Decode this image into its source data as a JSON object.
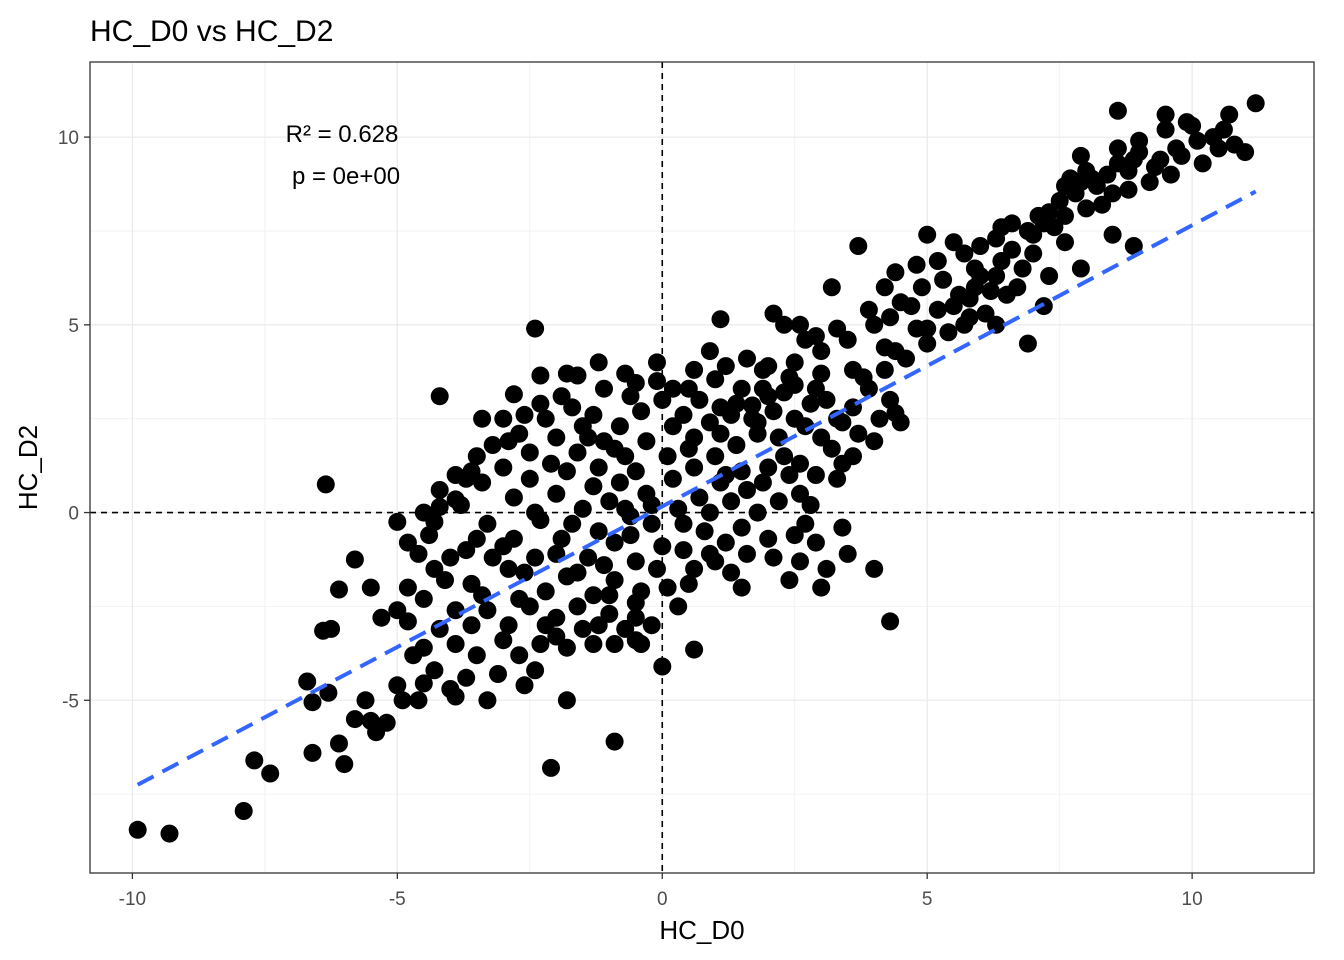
{
  "chart_data": {
    "type": "scatter",
    "title": "HC_D0 vs HC_D2",
    "xlabel": "HC_D0",
    "ylabel": "HC_D2",
    "xlim": [
      -10.8,
      12.3
    ],
    "ylim": [
      -9.6,
      12.0
    ],
    "x_ticks": [
      -10,
      -5,
      0,
      5,
      10
    ],
    "y_ticks": [
      -5,
      0,
      5,
      10
    ],
    "x_tick_labels": [
      "-10",
      "-5",
      "0",
      "5",
      "10"
    ],
    "y_tick_labels": [
      "-5",
      "0",
      "5",
      "10"
    ],
    "grid": true,
    "reference_lines": {
      "x": 0,
      "y": 0,
      "style": "dashed",
      "color": "#000000"
    },
    "annotations": {
      "r2": "R² = 0.628",
      "p": "p = 0e+00"
    },
    "fit_line": {
      "x": [
        -9.9,
        11.2
      ],
      "y": [
        -7.25,
        8.55
      ],
      "color": "#3366FF",
      "style": "dashed"
    },
    "point_color": "#000000",
    "points": [
      [
        -9.9,
        -8.45
      ],
      [
        -9.3,
        -8.55
      ],
      [
        -7.9,
        -7.95
      ],
      [
        -7.4,
        -6.95
      ],
      [
        -7.7,
        -6.6
      ],
      [
        -6.6,
        -6.4
      ],
      [
        -6.0,
        -6.7
      ],
      [
        -6.1,
        -6.15
      ],
      [
        -5.8,
        -5.5
      ],
      [
        -5.5,
        -5.55
      ],
      [
        -5.4,
        -5.85
      ],
      [
        -5.2,
        -5.6
      ],
      [
        -4.9,
        -5.0
      ],
      [
        -4.6,
        -5.0
      ],
      [
        -4.5,
        -4.55
      ],
      [
        -4.3,
        -4.2
      ],
      [
        -4.0,
        -4.7
      ],
      [
        -3.9,
        -4.9
      ],
      [
        -3.3,
        -5.0
      ],
      [
        -3.7,
        -4.4
      ],
      [
        -6.7,
        -4.5
      ],
      [
        -6.6,
        -5.05
      ],
      [
        -6.3,
        -4.8
      ],
      [
        -5.6,
        -5.0
      ],
      [
        -5.0,
        -4.6
      ],
      [
        -4.7,
        -3.8
      ],
      [
        -4.5,
        -3.6
      ],
      [
        -4.8,
        -2.9
      ],
      [
        -5.3,
        -2.8
      ],
      [
        -5.0,
        -2.6
      ],
      [
        -5.5,
        -2.0
      ],
      [
        -5.8,
        -1.25
      ],
      [
        -6.1,
        -2.05
      ],
      [
        -6.4,
        -3.15
      ],
      [
        -6.25,
        -3.1
      ],
      [
        -6.35,
        0.75
      ],
      [
        -5.0,
        -0.25
      ],
      [
        -4.8,
        -0.8
      ],
      [
        -4.3,
        -0.25
      ],
      [
        -4.5,
        0.0
      ],
      [
        -4.2,
        0.15
      ],
      [
        -3.9,
        0.35
      ],
      [
        -3.7,
        0.9
      ],
      [
        -3.6,
        1.1
      ],
      [
        -3.4,
        2.5
      ],
      [
        -4.2,
        3.1
      ],
      [
        -3.0,
        2.5
      ],
      [
        -2.8,
        3.15
      ],
      [
        -2.4,
        4.9
      ],
      [
        -2.3,
        3.65
      ],
      [
        -1.8,
        3.7
      ],
      [
        -1.6,
        3.65
      ],
      [
        -1.2,
        4.0
      ],
      [
        -0.7,
        3.7
      ],
      [
        -0.5,
        3.45
      ],
      [
        -0.1,
        4.0
      ],
      [
        0.2,
        3.3
      ],
      [
        0.5,
        3.3
      ],
      [
        1.0,
        3.55
      ],
      [
        1.1,
        2.8
      ],
      [
        1.4,
        2.9
      ],
      [
        1.7,
        2.85
      ],
      [
        2.0,
        3.1
      ],
      [
        2.3,
        3.2
      ],
      [
        1.8,
        2.4
      ],
      [
        2.2,
        2.0
      ],
      [
        2.5,
        2.5
      ],
      [
        2.8,
        2.9
      ],
      [
        3.1,
        3.0
      ],
      [
        3.4,
        2.4
      ],
      [
        3.7,
        2.1
      ],
      [
        3.9,
        3.3
      ],
      [
        4.3,
        3.0
      ],
      [
        4.4,
        2.65
      ],
      [
        4.0,
        1.9
      ],
      [
        3.6,
        1.5
      ],
      [
        3.2,
        1.7
      ],
      [
        3.4,
        1.3
      ],
      [
        2.9,
        1.0
      ],
      [
        2.6,
        0.5
      ],
      [
        2.8,
        0.2
      ],
      [
        2.7,
        -0.3
      ],
      [
        2.5,
        -0.6
      ],
      [
        2.9,
        -0.8
      ],
      [
        3.4,
        -0.4
      ],
      [
        1.1,
        5.15
      ],
      [
        2.1,
        5.3
      ],
      [
        2.6,
        5.0
      ],
      [
        3.2,
        6.0
      ],
      [
        3.7,
        7.1
      ],
      [
        4.2,
        6.0
      ],
      [
        4.8,
        6.6
      ],
      [
        5.0,
        7.4
      ],
      [
        5.3,
        6.2
      ],
      [
        5.5,
        7.2
      ],
      [
        5.9,
        6.5
      ],
      [
        6.0,
        7.1
      ],
      [
        6.3,
        7.3
      ],
      [
        6.6,
        7.7
      ],
      [
        6.9,
        7.5
      ],
      [
        7.1,
        7.9
      ],
      [
        7.3,
        8.0
      ],
      [
        7.5,
        8.3
      ],
      [
        7.7,
        8.9
      ],
      [
        7.9,
        9.5
      ],
      [
        8.2,
        8.7
      ],
      [
        8.4,
        9.0
      ],
      [
        8.6,
        9.3
      ],
      [
        8.8,
        9.1
      ],
      [
        9.0,
        9.6
      ],
      [
        9.2,
        8.8
      ],
      [
        9.4,
        9.4
      ],
      [
        9.6,
        9.0
      ],
      [
        9.8,
        9.5
      ],
      [
        10.0,
        10.3
      ],
      [
        10.2,
        9.3
      ],
      [
        10.5,
        9.7
      ],
      [
        10.8,
        9.8
      ],
      [
        11.0,
        9.6
      ],
      [
        11.2,
        10.9
      ],
      [
        10.7,
        10.6
      ],
      [
        10.6,
        10.2
      ],
      [
        9.9,
        10.4
      ],
      [
        9.5,
        10.2
      ],
      [
        9.5,
        10.6
      ],
      [
        8.6,
        10.7
      ],
      [
        9.0,
        9.9
      ],
      [
        8.8,
        8.6
      ],
      [
        7.9,
        8.8
      ],
      [
        7.6,
        7.9
      ],
      [
        7.2,
        7.7
      ],
      [
        8.0,
        8.1
      ],
      [
        8.3,
        8.2
      ],
      [
        7.9,
        6.5
      ],
      [
        8.9,
        7.1
      ],
      [
        8.5,
        7.4
      ],
      [
        6.9,
        4.5
      ],
      [
        7.2,
        5.5
      ],
      [
        6.5,
        5.8
      ],
      [
        6.1,
        5.3
      ],
      [
        5.7,
        5.0
      ],
      [
        5.4,
        4.8
      ],
      [
        5.0,
        4.5
      ],
      [
        4.6,
        4.1
      ],
      [
        4.2,
        3.8
      ],
      [
        6.3,
        5.0
      ],
      [
        4.7,
        5.5
      ],
      [
        4.3,
        5.2
      ],
      [
        6.7,
        6.0
      ],
      [
        6.3,
        6.3
      ],
      [
        5.8,
        5.7
      ],
      [
        4.4,
        6.4
      ],
      [
        7.3,
        6.3
      ],
      [
        7.6,
        7.2
      ],
      [
        5.5,
        5.5
      ],
      [
        4.0,
        5.0
      ],
      [
        3.5,
        4.6
      ],
      [
        3.0,
        4.3
      ],
      [
        2.7,
        4.6
      ],
      [
        2.3,
        5.0
      ],
      [
        0.9,
        4.3
      ],
      [
        3.3,
        0.9
      ],
      [
        4.3,
        -2.9
      ],
      [
        4.0,
        -1.5
      ],
      [
        3.5,
        -1.1
      ],
      [
        3.1,
        -1.5
      ],
      [
        2.6,
        -1.3
      ],
      [
        2.1,
        -1.2
      ],
      [
        1.6,
        -1.1
      ],
      [
        1.3,
        -1.6
      ],
      [
        1.0,
        -1.3
      ],
      [
        0.6,
        -1.5
      ],
      [
        0.1,
        -2.0
      ],
      [
        0.3,
        -2.5
      ],
      [
        -0.5,
        -2.4
      ],
      [
        -0.2,
        -3.0
      ],
      [
        -0.5,
        -3.4
      ],
      [
        0.6,
        -3.65
      ],
      [
        0.0,
        -4.1
      ],
      [
        -0.4,
        -3.5
      ],
      [
        -0.9,
        -3.5
      ],
      [
        -1.3,
        -3.5
      ],
      [
        -1.8,
        -3.6
      ],
      [
        -2.3,
        -3.5
      ],
      [
        -2.7,
        -3.8
      ],
      [
        -2.4,
        -4.2
      ],
      [
        -2.6,
        -4.6
      ],
      [
        -1.8,
        -5.0
      ],
      [
        -2.1,
        -6.8
      ],
      [
        -0.9,
        -6.1
      ],
      [
        -3.1,
        -4.3
      ],
      [
        -3.5,
        -3.8
      ],
      [
        -3.9,
        -3.5
      ],
      [
        -4.2,
        -3.1
      ],
      [
        -4.5,
        -2.3
      ],
      [
        -4.3,
        -1.5
      ],
      [
        -4.4,
        -0.6
      ],
      [
        -4.0,
        -1.2
      ],
      [
        -3.6,
        -1.9
      ],
      [
        -3.3,
        -2.6
      ],
      [
        -2.9,
        -3.0
      ],
      [
        -2.5,
        -2.5
      ],
      [
        -2.0,
        -2.8
      ],
      [
        -1.5,
        -3.1
      ],
      [
        -1.0,
        -2.7
      ],
      [
        -3.3,
        -0.3
      ],
      [
        -3.0,
        -0.9
      ],
      [
        -2.6,
        -1.6
      ],
      [
        -2.2,
        -2.1
      ],
      [
        -1.8,
        -1.7
      ],
      [
        -1.3,
        -2.2
      ],
      [
        -0.9,
        -1.8
      ],
      [
        -0.4,
        -2.1
      ],
      [
        -2.8,
        0.4
      ],
      [
        -2.3,
        -0.2
      ],
      [
        -1.9,
        -0.7
      ],
      [
        -1.4,
        -1.2
      ],
      [
        -0.9,
        -0.8
      ],
      [
        -0.5,
        -1.3
      ],
      [
        0.0,
        -0.9
      ],
      [
        0.4,
        -1.0
      ],
      [
        0.8,
        -0.5
      ],
      [
        1.2,
        -0.8
      ],
      [
        1.5,
        -0.4
      ],
      [
        1.8,
        0.0
      ],
      [
        2.2,
        0.3
      ],
      [
        1.9,
        0.8
      ],
      [
        1.5,
        1.1
      ],
      [
        1.1,
        0.8
      ],
      [
        0.7,
        0.4
      ],
      [
        0.3,
        0.1
      ],
      [
        -0.2,
        -0.3
      ],
      [
        -0.6,
        -0.1
      ],
      [
        -1.0,
        0.3
      ],
      [
        -1.5,
        0.1
      ],
      [
        -2.0,
        0.5
      ],
      [
        -2.5,
        0.9
      ],
      [
        -2.1,
        1.3
      ],
      [
        -1.6,
        1.6
      ],
      [
        -1.2,
        1.2
      ],
      [
        -0.8,
        0.8
      ],
      [
        -0.3,
        0.5
      ],
      [
        0.2,
        0.9
      ],
      [
        0.6,
        1.2
      ],
      [
        1.0,
        1.5
      ],
      [
        1.4,
        1.8
      ],
      [
        1.8,
        2.1
      ],
      [
        2.3,
        1.5
      ],
      [
        0.6,
        2.0
      ],
      [
        0.2,
        2.3
      ],
      [
        -0.3,
        1.9
      ],
      [
        -0.7,
        1.5
      ],
      [
        -1.1,
        1.9
      ],
      [
        -1.5,
        2.3
      ],
      [
        -2.0,
        2.0
      ],
      [
        -2.5,
        1.6
      ],
      [
        -3.0,
        1.2
      ],
      [
        -2.7,
        2.1
      ],
      [
        -2.2,
        2.5
      ],
      [
        -1.7,
        2.8
      ],
      [
        -1.3,
        2.6
      ],
      [
        -0.8,
        2.3
      ],
      [
        -0.4,
        2.7
      ],
      [
        0.0,
        3.0
      ],
      [
        0.4,
        2.6
      ],
      [
        0.9,
        2.4
      ],
      [
        1.3,
        2.6
      ],
      [
        -3.4,
        0.8
      ],
      [
        -3.8,
        0.2
      ],
      [
        -3.5,
        -0.7
      ],
      [
        -2.9,
        -1.5
      ],
      [
        -2.4,
        -1.2
      ],
      [
        -1.7,
        -0.3
      ],
      [
        -1.2,
        -0.5
      ],
      [
        -0.7,
        0.1
      ],
      [
        -0.2,
        0.2
      ],
      [
        0.4,
        -0.3
      ],
      [
        0.9,
        0.0
      ],
      [
        1.3,
        0.3
      ],
      [
        1.6,
        0.6
      ],
      [
        2.0,
        1.2
      ],
      [
        2.4,
        1.0
      ],
      [
        0.1,
        1.5
      ],
      [
        -0.5,
        1.1
      ],
      [
        -1.3,
        0.7
      ],
      [
        -1.8,
        1.1
      ],
      [
        -2.4,
        0.0
      ],
      [
        -2.8,
        -0.7
      ],
      [
        -2.0,
        -1.1
      ],
      [
        -1.6,
        -1.6
      ],
      [
        -1.1,
        -1.4
      ],
      [
        -0.6,
        -0.6
      ],
      [
        -0.1,
        -1.5
      ],
      [
        0.5,
        -1.9
      ],
      [
        0.9,
        -1.1
      ],
      [
        -3.2,
        -1.2
      ],
      [
        -3.7,
        -1.0
      ],
      [
        -4.1,
        -1.8
      ],
      [
        -3.9,
        -2.6
      ],
      [
        -3.4,
        -2.2
      ],
      [
        -2.7,
        -2.3
      ],
      [
        -2.2,
        -3.0
      ],
      [
        -1.6,
        -2.5
      ],
      [
        -1.0,
        -2.2
      ],
      [
        -0.5,
        -2.8
      ],
      [
        -4.6,
        -1.1
      ],
      [
        -4.8,
        -2.0
      ],
      [
        -3.6,
        -3.0
      ],
      [
        -3.0,
        -3.4
      ],
      [
        -2.0,
        -3.3
      ],
      [
        -1.2,
        -3.0
      ],
      [
        -0.7,
        -3.1
      ],
      [
        1.5,
        -2.0
      ],
      [
        2.4,
        -1.8
      ],
      [
        3.0,
        -2.0
      ],
      [
        2.0,
        -0.7
      ],
      [
        1.1,
        2.1
      ],
      [
        1.7,
        2.5
      ],
      [
        2.1,
        2.7
      ],
      [
        2.7,
        2.3
      ],
      [
        3.0,
        2.0
      ],
      [
        3.3,
        2.5
      ],
      [
        3.6,
        2.8
      ],
      [
        2.9,
        3.3
      ],
      [
        2.4,
        3.6
      ],
      [
        1.9,
        3.8
      ],
      [
        1.5,
        3.3
      ],
      [
        0.7,
        3.0
      ],
      [
        -0.1,
        3.5
      ],
      [
        -0.6,
        3.1
      ],
      [
        -1.1,
        3.3
      ],
      [
        -1.9,
        3.1
      ],
      [
        -2.3,
        2.9
      ],
      [
        -2.6,
        2.6
      ],
      [
        -3.2,
        1.8
      ],
      [
        -3.5,
        1.5
      ],
      [
        -3.9,
        1.0
      ],
      [
        -4.2,
        0.6
      ],
      [
        -2.9,
        1.9
      ],
      [
        -1.4,
        2.0
      ],
      [
        -0.9,
        1.7
      ],
      [
        0.5,
        1.7
      ],
      [
        1.2,
        1.0
      ],
      [
        2.6,
        1.3
      ],
      [
        4.5,
        2.4
      ],
      [
        4.1,
        2.5
      ],
      [
        5.8,
        5.2
      ],
      [
        6.2,
        5.9
      ],
      [
        6.8,
        6.5
      ],
      [
        7.0,
        6.9
      ],
      [
        6.4,
        6.7
      ],
      [
        5.9,
        6.0
      ],
      [
        5.2,
        5.4
      ],
      [
        4.8,
        4.9
      ],
      [
        4.4,
        4.3
      ],
      [
        5.0,
        4.9
      ],
      [
        5.6,
        5.8
      ],
      [
        6.0,
        6.3
      ],
      [
        6.6,
        7.0
      ],
      [
        7.4,
        7.6
      ],
      [
        7.8,
        8.5
      ],
      [
        8.1,
        8.9
      ],
      [
        8.5,
        8.5
      ],
      [
        8.9,
        9.4
      ],
      [
        9.3,
        9.2
      ],
      [
        9.7,
        9.7
      ],
      [
        10.1,
        9.9
      ],
      [
        10.4,
        10.0
      ],
      [
        8.6,
        9.7
      ],
      [
        8.0,
        9.1
      ],
      [
        7.6,
        8.7
      ],
      [
        7.0,
        7.4
      ],
      [
        6.4,
        7.6
      ],
      [
        5.7,
        6.9
      ],
      [
        5.2,
        6.7
      ],
      [
        4.9,
        6.0
      ],
      [
        4.5,
        5.6
      ],
      [
        3.9,
        5.4
      ],
      [
        3.3,
        4.9
      ],
      [
        2.9,
        4.7
      ],
      [
        2.5,
        4.0
      ],
      [
        2.0,
        3.9
      ],
      [
        3.8,
        3.6
      ],
      [
        4.2,
        4.4
      ],
      [
        3.6,
        3.8
      ],
      [
        3.0,
        3.7
      ],
      [
        2.5,
        3.4
      ],
      [
        1.9,
        3.3
      ],
      [
        1.6,
        4.1
      ],
      [
        1.2,
        3.9
      ],
      [
        0.6,
        3.8
      ]
    ]
  }
}
